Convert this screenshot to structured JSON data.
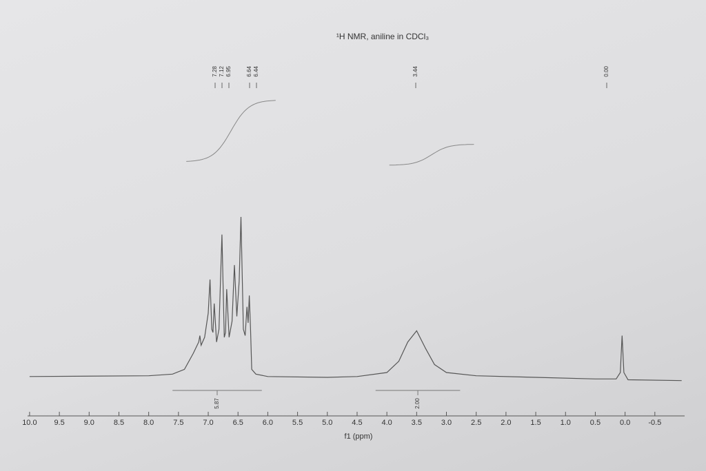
{
  "chart_data": {
    "type": "line",
    "title": "¹H NMR, aniline in CDCl₃",
    "x_label": "f1 (ppm)",
    "x": [
      10.0,
      8.0,
      7.6,
      7.4,
      7.25,
      7.16,
      7.14,
      7.12,
      7.06,
      7.0,
      6.97,
      6.94,
      6.92,
      6.9,
      6.86,
      6.82,
      6.77,
      6.73,
      6.71,
      6.69,
      6.65,
      6.6,
      6.56,
      6.52,
      6.48,
      6.45,
      6.41,
      6.38,
      6.35,
      6.33,
      6.31,
      6.29,
      6.27,
      6.2,
      6.0,
      5.0,
      4.5,
      4.0,
      3.8,
      3.65,
      3.5,
      3.35,
      3.2,
      3.0,
      2.5,
      1.5,
      0.5,
      0.15,
      0.08,
      0.05,
      0.02,
      -0.05,
      -0.95
    ],
    "values": [
      0.5,
      1,
      2,
      5,
      15,
      22,
      26,
      20,
      25,
      40,
      61,
      30,
      28,
      46,
      22,
      30,
      89,
      25,
      28,
      55,
      25,
      35,
      70,
      38,
      60,
      100,
      30,
      26,
      44,
      34,
      51,
      30,
      5,
      2,
      0.5,
      0,
      0.5,
      3,
      10,
      22,
      29,
      18,
      8,
      3,
      1,
      0,
      -1,
      -1,
      3,
      26,
      3,
      -1.5,
      -2
    ],
    "color": "#555555",
    "xlim": [
      10.3,
      -1.0
    ],
    "ylim": [
      0,
      100
    ],
    "xticks": [
      {
        "value": 10,
        "label": "10.0"
      },
      9.5,
      {
        "value": 9,
        "label": "9.0"
      },
      8.5,
      {
        "value": 8,
        "label": "8.0"
      },
      7.5,
      {
        "value": 7,
        "label": "7.0"
      },
      6.5,
      {
        "value": 6,
        "label": "6.0"
      },
      5.5,
      {
        "value": 5,
        "label": "5.0"
      },
      4.5,
      {
        "value": 4,
        "label": "4.0"
      },
      3.5,
      {
        "value": 3,
        "label": "3.0"
      },
      2.5,
      {
        "value": 2,
        "label": "2.0"
      },
      1.5,
      {
        "value": 1,
        "label": "1.0"
      },
      0.5,
      {
        "value": 0,
        "label": "0.0"
      },
      -0.5
    ],
    "peak_labels": [
      7.28,
      7.12,
      6.95,
      6.64,
      6.44,
      3.44,
      {
        "value": 0,
        "label": "0.00"
      }
    ],
    "integrals": [
      {
        "range": [
          7.6,
          6.1
        ],
        "value": 5.87
      },
      {
        "range": [
          4.19,
          2.77
        ],
        "value": {
          "value": 2,
          "label": "2.00"
        }
      }
    ]
  }
}
